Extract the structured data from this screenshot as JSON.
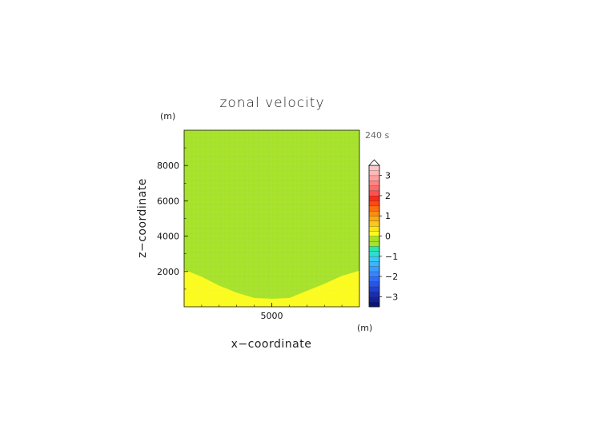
{
  "chart_data": {
    "type": "heatmap",
    "title": "zonal velocity",
    "time_label": "240 s",
    "xlabel": "x−coordinate",
    "ylabel": "z−coordinate",
    "x_unit": "(m)",
    "y_unit": "(m)",
    "xlim": [
      0,
      10000
    ],
    "ylim": [
      0,
      10000
    ],
    "x_ticks": [
      5000
    ],
    "y_ticks": [
      2000,
      4000,
      6000,
      8000
    ],
    "field_description_regions": [
      {
        "name": "0",
        "color": "#a6e22a"
      },
      {
        "name": "0 to 1",
        "color": "#fbfb1e"
      }
    ],
    "yellow_region_boundary": {
      "x": [
        0,
        1000,
        2000,
        3000,
        4000,
        5000,
        6000,
        7000,
        8000,
        9000,
        10000
      ],
      "z": [
        2100,
        1700,
        1200,
        800,
        500,
        450,
        500,
        900,
        1300,
        1750,
        2050
      ]
    },
    "colorbar": {
      "ticks": [
        -3,
        -2,
        -1,
        0,
        1,
        2,
        3
      ],
      "tick_labels": [
        "−3",
        "−2",
        "−1",
        "0",
        "1",
        "2",
        "3"
      ],
      "levels": [
        -3.5,
        -3.25,
        -3,
        -2.75,
        -2.5,
        -2.25,
        -2,
        -1.75,
        -1.5,
        -1.25,
        -1,
        -0.75,
        -0.5,
        -0.25,
        0,
        0.25,
        0.5,
        0.75,
        1,
        1.25,
        1.5,
        1.75,
        2,
        2.25,
        2.5,
        2.75,
        3,
        3.25,
        3.5
      ],
      "colors": [
        "#0c1478",
        "#142095",
        "#1a2cb3",
        "#2040cf",
        "#2855e3",
        "#2f6cf5",
        "#3784ff",
        "#3c9cff",
        "#3cb4ff",
        "#3ccaf0",
        "#30dcd2",
        "#2ae6aa",
        "#a6e22a",
        "#a6e22a",
        "#fbfb1e",
        "#fbe51a",
        "#fbc817",
        "#fbaa14",
        "#fb8c12",
        "#fb6e12",
        "#fb4a12",
        "#fb2a18",
        "#ff5050",
        "#ff6b6b",
        "#ff8585",
        "#ffa0a0",
        "#ffb8b8",
        "#ffc8c8"
      ],
      "extend": "max"
    }
  }
}
